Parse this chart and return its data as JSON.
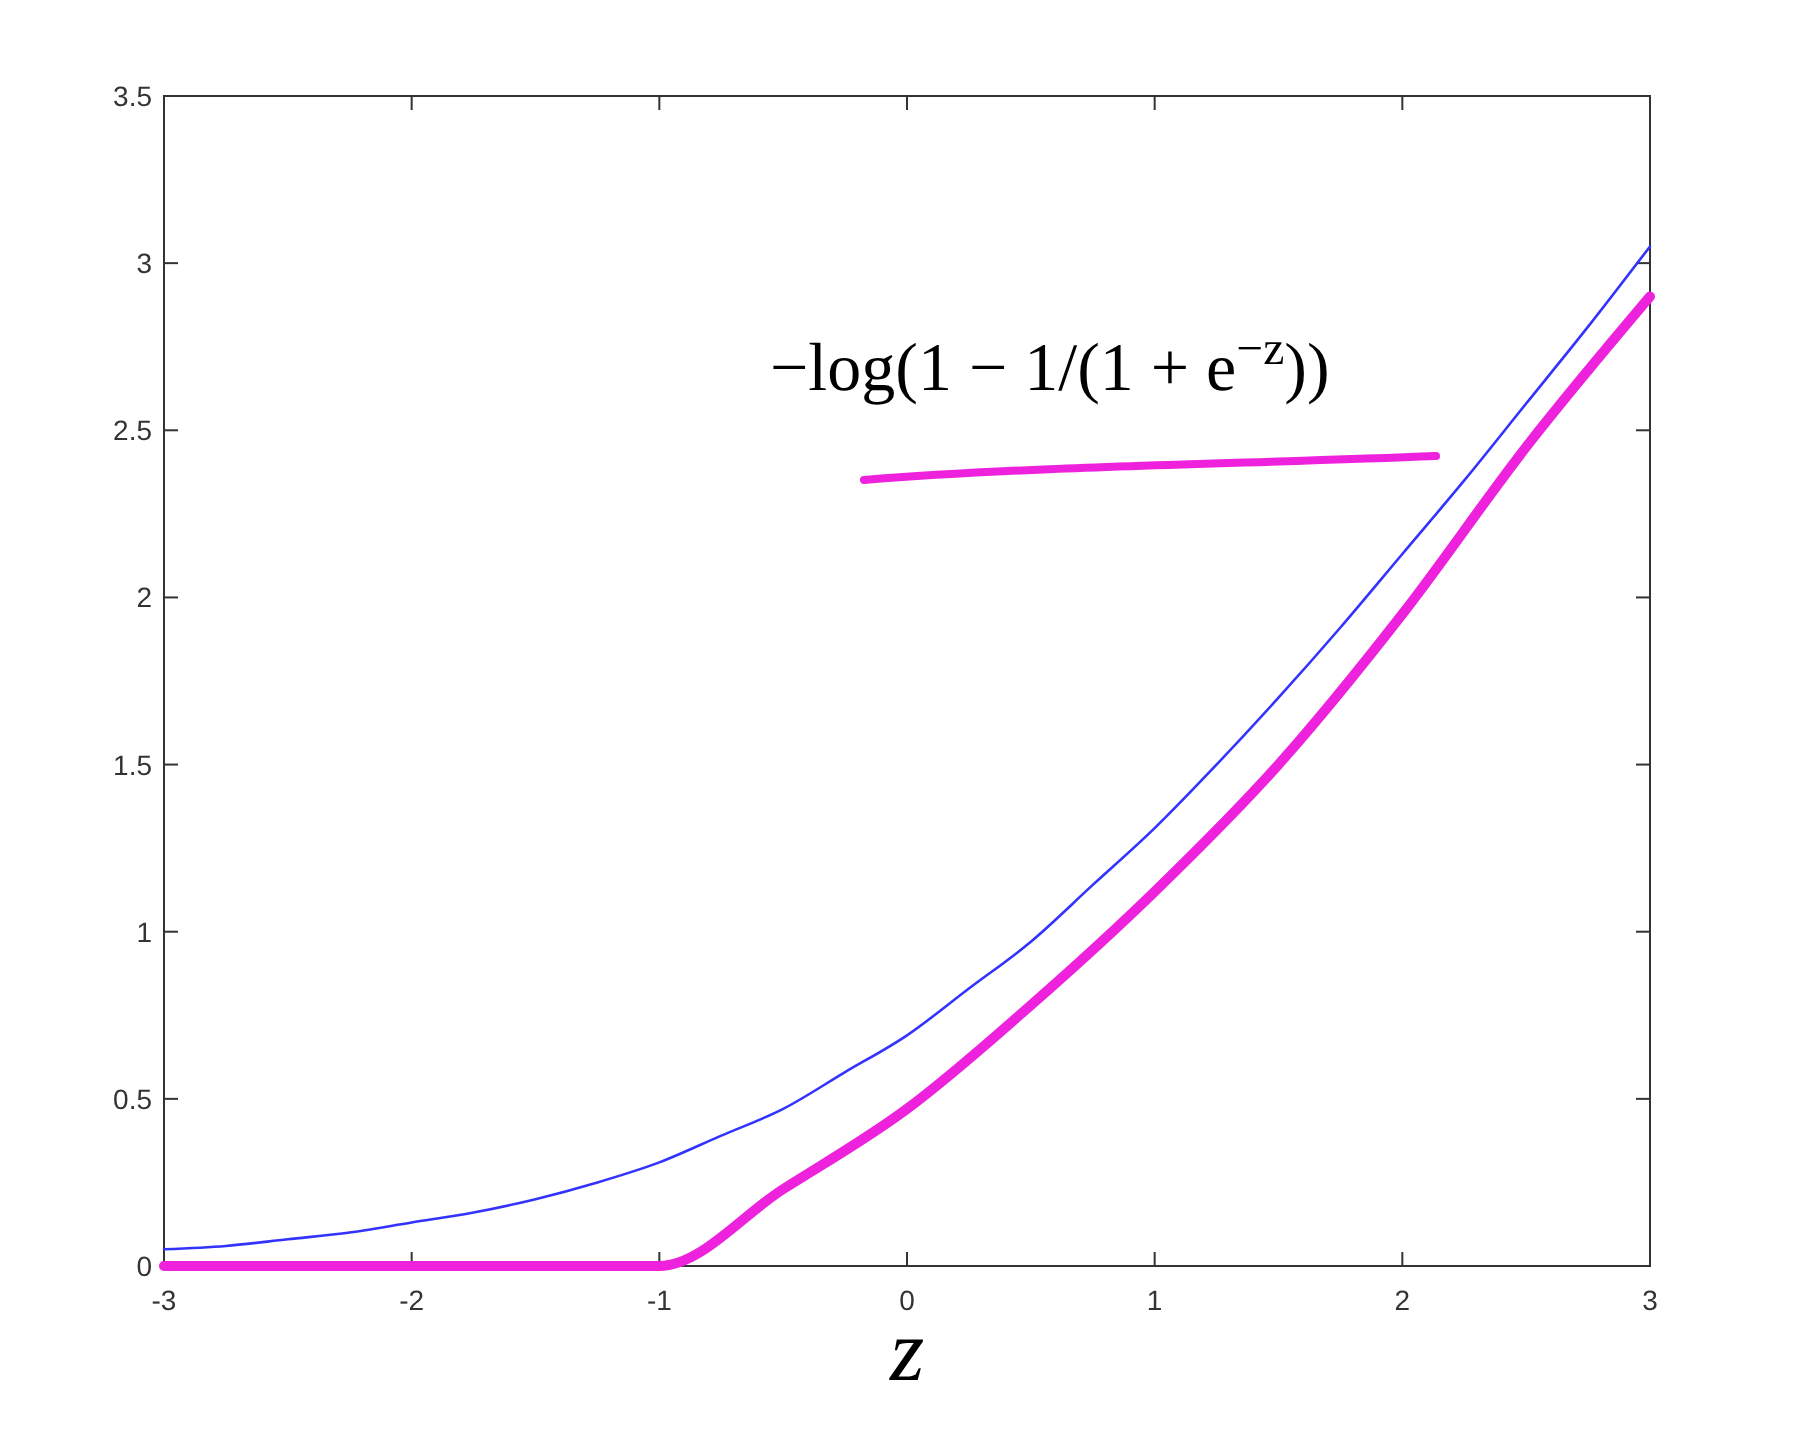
{
  "chart_data": {
    "type": "line",
    "xlabel": "z",
    "annotations": [
      "−log(1 − 1/(1 + e$^{−z}$))"
    ],
    "xlim": [
      -3,
      3
    ],
    "xticks": [
      -3,
      -2,
      -1,
      0,
      1,
      2,
      3
    ],
    "ylim": [
      0,
      3.5
    ],
    "yticks": [
      0,
      0.5,
      1,
      1.5,
      2,
      2.5,
      3,
      3.5
    ],
    "grid": false,
    "series": [
      {
        "color": "#3333ff",
        "x": [
          -3,
          -2.75,
          -2.5,
          -2.25,
          -2,
          -1.75,
          -1.5,
          -1.25,
          -1,
          -0.75,
          -0.5,
          -0.25,
          0,
          0.25,
          0.5,
          0.75,
          1,
          1.25,
          1.5,
          1.75,
          2,
          2.25,
          2.5,
          2.75,
          3
        ],
        "values": [
          0.05,
          0.06,
          0.08,
          0.1,
          0.13,
          0.16,
          0.2,
          0.25,
          0.31,
          0.39,
          0.47,
          0.58,
          0.69,
          0.83,
          0.97,
          1.14,
          1.31,
          1.5,
          1.7,
          1.91,
          2.13,
          2.35,
          2.58,
          2.81,
          3.05
        ]
      },
      {
        "color": "#ee22dd",
        "x": [
          -3,
          -2.5,
          -2,
          -1.5,
          -1,
          -0.5,
          0,
          0.5,
          1,
          1.5,
          2,
          2.5,
          3
        ],
        "values": [
          0.0,
          0.0,
          0.0,
          0.0,
          0.0,
          0.23,
          0.47,
          0.78,
          1.12,
          1.5,
          1.95,
          2.45,
          2.9
        ]
      }
    ]
  }
}
